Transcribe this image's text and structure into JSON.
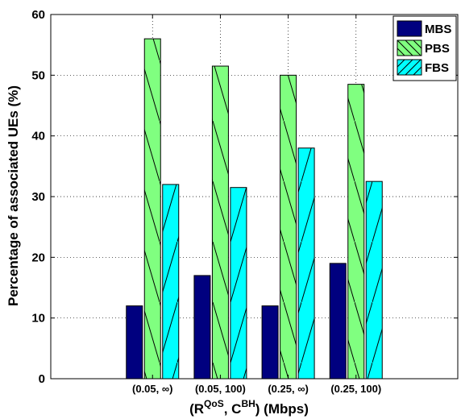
{
  "chart_data": {
    "type": "bar",
    "title": "",
    "xlabel": {
      "base1": "(R",
      "sup1": "QoS",
      "mid": ", C",
      "sup2": "BH",
      "tail": ") (Mbps)"
    },
    "ylabel": "Percentage of associated UEs (%)",
    "ylim": [
      0,
      60
    ],
    "yticks": [
      0,
      10,
      20,
      30,
      40,
      50,
      60
    ],
    "ytick_labels": [
      "0",
      "10",
      "20",
      "30",
      "40",
      "50",
      "60"
    ],
    "grid": true,
    "legend_position": "top-right",
    "categories": [
      "(0.05, ∞)",
      "(0.05, 100)",
      "(0.25, ∞)",
      "(0.25, 100)"
    ],
    "series": [
      {
        "name": "MBS",
        "values": [
          12,
          17,
          12,
          19
        ],
        "color": "#00007f",
        "pattern": "none"
      },
      {
        "name": "PBS",
        "values": [
          56,
          51.5,
          50,
          48.5
        ],
        "color": "#80ff80",
        "pattern": "backslash"
      },
      {
        "name": "FBS",
        "values": [
          32,
          31.5,
          38,
          32.5
        ],
        "color": "#00ffff",
        "pattern": "slash"
      }
    ]
  }
}
